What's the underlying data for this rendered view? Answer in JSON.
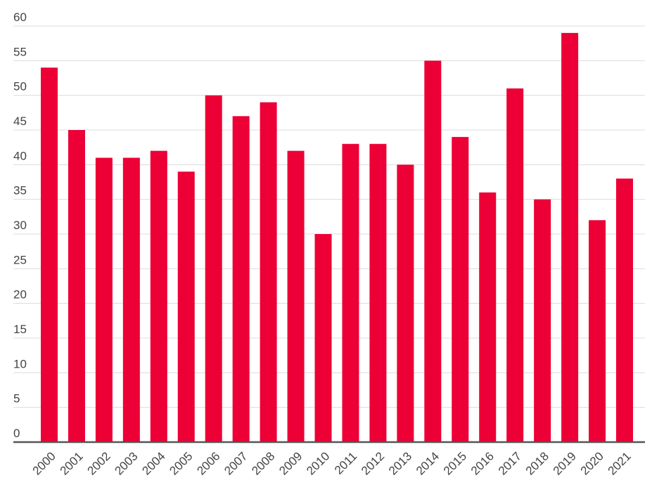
{
  "chart_data": {
    "type": "bar",
    "title": "",
    "xlabel": "",
    "ylabel": "",
    "categories": [
      "2000",
      "2001",
      "2002",
      "2003",
      "2004",
      "2005",
      "2006",
      "2007",
      "2008",
      "2009",
      "2010",
      "2011",
      "2012",
      "2013",
      "2014",
      "2015",
      "2016",
      "2017",
      "2018",
      "2019",
      "2020",
      "2021"
    ],
    "values": [
      54,
      45,
      41,
      41,
      42,
      39,
      50,
      47,
      49,
      42,
      30,
      43,
      43,
      40,
      55,
      44,
      36,
      51,
      35,
      59,
      32,
      38
    ],
    "ylim": [
      0,
      60
    ],
    "yticks": [
      0,
      5,
      10,
      15,
      20,
      25,
      30,
      35,
      40,
      45,
      50,
      55,
      60
    ],
    "grid": true,
    "legend": "none",
    "bar_color": "#ec0035"
  }
}
